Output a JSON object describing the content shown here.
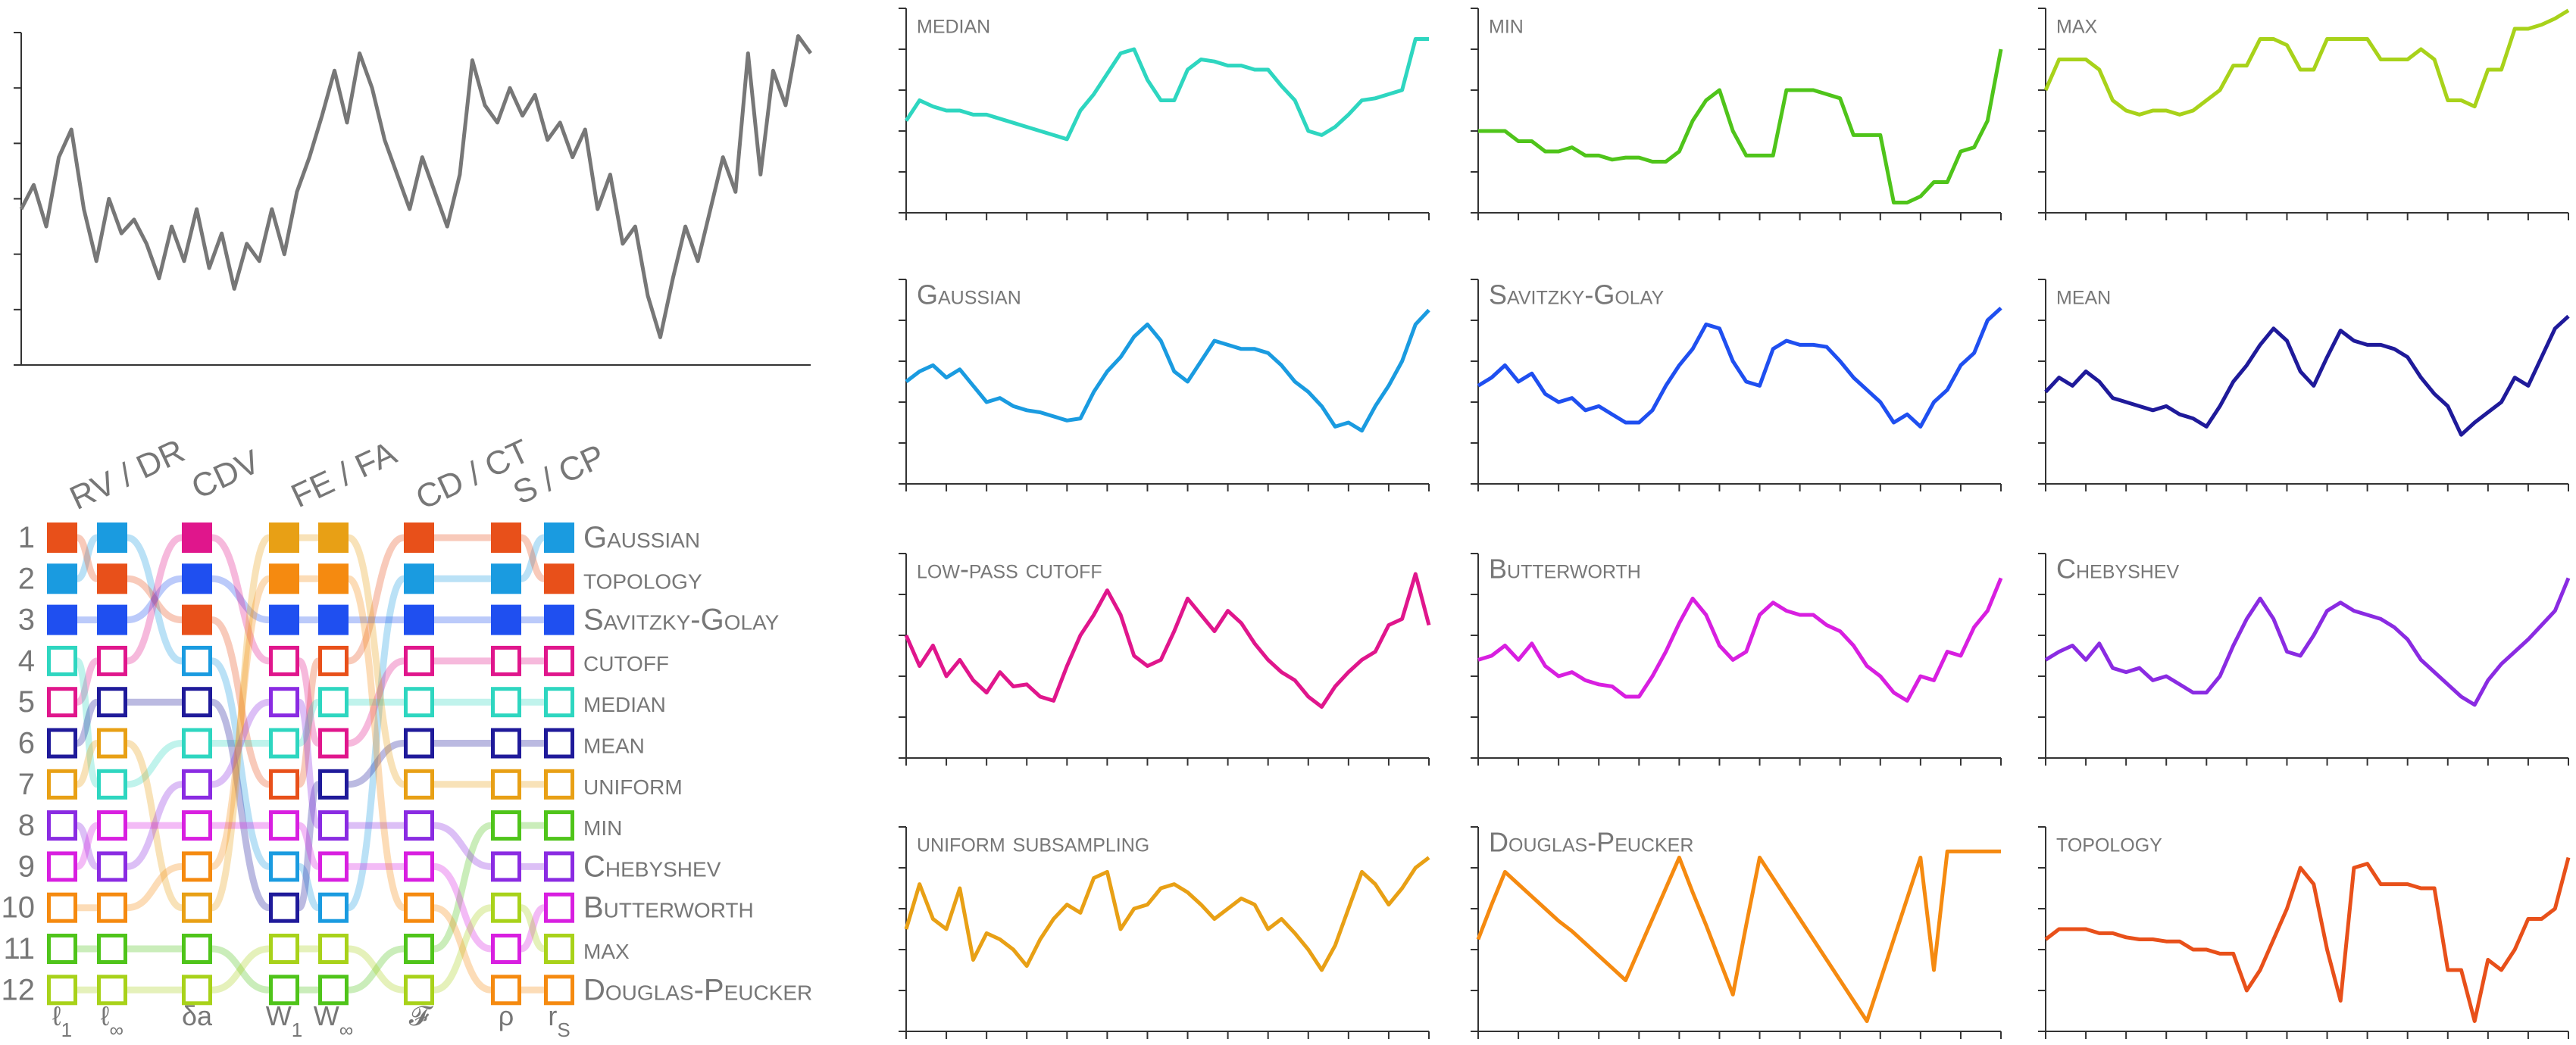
{
  "chart_data": [
    {
      "type": "line",
      "color": "#777777",
      "xlim": [
        0,
        63
      ],
      "ylim": [
        0,
        96
      ],
      "yticks": [
        0,
        16,
        32,
        48,
        64,
        80,
        96
      ],
      "values": [
        45,
        52,
        40,
        60,
        68,
        45,
        30,
        48,
        38,
        42,
        35,
        25,
        40,
        30,
        45,
        28,
        38,
        22,
        35,
        30,
        45,
        32,
        50,
        60,
        72,
        85,
        70,
        90,
        80,
        65,
        55,
        45,
        60,
        50,
        40,
        55,
        88,
        75,
        70,
        80,
        72,
        78,
        65,
        70,
        60,
        68,
        45,
        55,
        35,
        40,
        20,
        8,
        25,
        40,
        30,
        45,
        60,
        50,
        90,
        55,
        85,
        75,
        95,
        90
      ]
    },
    {
      "type": "line",
      "title": "median",
      "color": "#2ed6c0",
      "xlim": [
        0,
        39
      ],
      "xticks": [
        0,
        3,
        6,
        9,
        12,
        15,
        18,
        21,
        24,
        27,
        30,
        33,
        36,
        39
      ],
      "ylim": [
        0,
        100
      ],
      "yticks": [
        0,
        20,
        40,
        60,
        80,
        100
      ],
      "values": [
        45,
        55,
        52,
        50,
        50,
        48,
        48,
        46,
        44,
        42,
        40,
        38,
        36,
        50,
        58,
        68,
        78,
        80,
        65,
        55,
        55,
        70,
        75,
        74,
        72,
        72,
        70,
        70,
        62,
        55,
        40,
        38,
        42,
        48,
        55,
        56,
        58,
        60,
        85,
        85
      ]
    },
    {
      "type": "line",
      "title": "min",
      "color": "#4fc41a",
      "xlim": [
        0,
        39
      ],
      "xticks": [
        0,
        3,
        6,
        9,
        12,
        15,
        18,
        21,
        24,
        27,
        30,
        33,
        36,
        39
      ],
      "ylim": [
        0,
        100
      ],
      "yticks": [
        0,
        20,
        40,
        60,
        80,
        100
      ],
      "values": [
        40,
        40,
        40,
        35,
        35,
        30,
        30,
        32,
        28,
        28,
        26,
        27,
        27,
        25,
        25,
        30,
        45,
        55,
        60,
        40,
        28,
        28,
        28,
        60,
        60,
        60,
        58,
        56,
        38,
        38,
        38,
        5,
        5,
        8,
        15,
        15,
        30,
        32,
        45,
        80
      ]
    },
    {
      "type": "line",
      "title": "max",
      "color": "#a8d21a",
      "xlim": [
        0,
        39
      ],
      "xticks": [
        0,
        3,
        6,
        9,
        12,
        15,
        18,
        21,
        24,
        27,
        30,
        33,
        36,
        39
      ],
      "ylim": [
        0,
        100
      ],
      "yticks": [
        0,
        20,
        40,
        60,
        80,
        100
      ],
      "values": [
        60,
        75,
        75,
        75,
        70,
        55,
        50,
        48,
        50,
        50,
        48,
        50,
        55,
        60,
        72,
        72,
        85,
        85,
        82,
        70,
        70,
        85,
        85,
        85,
        85,
        75,
        75,
        75,
        80,
        75,
        55,
        55,
        52,
        70,
        70,
        90,
        90,
        92,
        95,
        99
      ]
    },
    {
      "type": "line",
      "title": "Gaussian",
      "color": "#1a9be0",
      "xlim": [
        0,
        39
      ],
      "xticks": [
        0,
        3,
        6,
        9,
        12,
        15,
        18,
        21,
        24,
        27,
        30,
        33,
        36,
        39
      ],
      "ylim": [
        0,
        100
      ],
      "yticks": [
        0,
        20,
        40,
        60,
        80,
        100
      ],
      "values": [
        50,
        55,
        58,
        52,
        56,
        48,
        40,
        42,
        38,
        36,
        35,
        33,
        31,
        32,
        45,
        55,
        62,
        72,
        78,
        70,
        55,
        50,
        60,
        70,
        68,
        66,
        66,
        64,
        58,
        50,
        45,
        38,
        28,
        30,
        26,
        38,
        48,
        60,
        78,
        85
      ]
    },
    {
      "type": "line",
      "title": "Savitzky-Golay",
      "color": "#1f4ff0",
      "xlim": [
        0,
        39
      ],
      "xticks": [
        0,
        3,
        6,
        9,
        12,
        15,
        18,
        21,
        24,
        27,
        30,
        33,
        36,
        39
      ],
      "ylim": [
        0,
        100
      ],
      "yticks": [
        0,
        20,
        40,
        60,
        80,
        100
      ],
      "values": [
        48,
        52,
        58,
        50,
        54,
        44,
        40,
        42,
        36,
        38,
        34,
        30,
        30,
        36,
        48,
        58,
        66,
        78,
        76,
        60,
        50,
        48,
        66,
        70,
        68,
        68,
        67,
        60,
        52,
        46,
        40,
        30,
        34,
        28,
        40,
        46,
        58,
        64,
        80,
        86
      ]
    },
    {
      "type": "line",
      "title": "mean",
      "color": "#1f1a9a",
      "xlim": [
        0,
        39
      ],
      "xticks": [
        0,
        3,
        6,
        9,
        12,
        15,
        18,
        21,
        24,
        27,
        30,
        33,
        36,
        39
      ],
      "ylim": [
        0,
        100
      ],
      "yticks": [
        0,
        20,
        40,
        60,
        80,
        100
      ],
      "values": [
        45,
        52,
        48,
        55,
        50,
        42,
        40,
        38,
        36,
        38,
        34,
        32,
        28,
        38,
        50,
        58,
        68,
        76,
        70,
        55,
        48,
        62,
        75,
        70,
        68,
        68,
        66,
        62,
        52,
        44,
        38,
        24,
        30,
        35,
        40,
        52,
        48,
        62,
        76,
        82
      ]
    },
    {
      "type": "line",
      "title": "low-pass cutoff",
      "color": "#e0168c",
      "xlim": [
        0,
        39
      ],
      "xticks": [
        0,
        3,
        6,
        9,
        12,
        15,
        18,
        21,
        24,
        27,
        30,
        33,
        36,
        39
      ],
      "ylim": [
        0,
        100
      ],
      "yticks": [
        0,
        20,
        40,
        60,
        80,
        100
      ],
      "values": [
        60,
        45,
        55,
        40,
        48,
        38,
        32,
        42,
        35,
        36,
        30,
        28,
        45,
        60,
        70,
        82,
        70,
        50,
        45,
        48,
        62,
        78,
        70,
        62,
        72,
        66,
        56,
        48,
        42,
        38,
        30,
        25,
        35,
        42,
        48,
        52,
        65,
        68,
        90,
        65
      ]
    },
    {
      "type": "line",
      "title": "Butterworth",
      "color": "#d81fe0",
      "xlim": [
        0,
        39
      ],
      "xticks": [
        0,
        3,
        6,
        9,
        12,
        15,
        18,
        21,
        24,
        27,
        30,
        33,
        36,
        39
      ],
      "ylim": [
        0,
        100
      ],
      "yticks": [
        0,
        20,
        40,
        60,
        80,
        100
      ],
      "values": [
        48,
        50,
        55,
        48,
        56,
        45,
        40,
        42,
        38,
        36,
        35,
        30,
        30,
        40,
        52,
        66,
        78,
        70,
        55,
        48,
        52,
        70,
        76,
        72,
        70,
        70,
        65,
        62,
        55,
        45,
        40,
        32,
        28,
        40,
        38,
        52,
        50,
        64,
        72,
        88
      ]
    },
    {
      "type": "line",
      "title": "Chebyshev",
      "color": "#8a2be2",
      "xlim": [
        0,
        39
      ],
      "xticks": [
        0,
        3,
        6,
        9,
        12,
        15,
        18,
        21,
        24,
        27,
        30,
        33,
        36,
        39
      ],
      "ylim": [
        0,
        100
      ],
      "yticks": [
        0,
        20,
        40,
        60,
        80,
        100
      ],
      "values": [
        48,
        52,
        55,
        48,
        56,
        44,
        42,
        44,
        38,
        40,
        36,
        32,
        32,
        40,
        55,
        68,
        78,
        68,
        52,
        50,
        60,
        72,
        76,
        72,
        70,
        68,
        64,
        58,
        48,
        42,
        36,
        30,
        26,
        38,
        46,
        52,
        58,
        65,
        72,
        88
      ]
    },
    {
      "type": "line",
      "title": "uniform subsampling",
      "color": "#e8a015",
      "xlim": [
        0,
        39
      ],
      "xticks": [
        0,
        3,
        6,
        9,
        12,
        15,
        18,
        21,
        24,
        27,
        30,
        33,
        36,
        39
      ],
      "ylim": [
        0,
        100
      ],
      "yticks": [
        0,
        20,
        40,
        60,
        80,
        100
      ],
      "values": [
        50,
        72,
        55,
        50,
        70,
        35,
        48,
        45,
        40,
        32,
        45,
        55,
        62,
        58,
        75,
        78,
        50,
        60,
        62,
        70,
        72,
        68,
        62,
        55,
        60,
        65,
        62,
        50,
        55,
        48,
        40,
        30,
        42,
        60,
        78,
        72,
        62,
        70,
        80,
        85
      ]
    },
    {
      "type": "line",
      "title": "Douglas-Peucker",
      "color": "#f58a10",
      "xlim": [
        0,
        39
      ],
      "xticks": [
        0,
        3,
        6,
        9,
        12,
        15,
        18,
        21,
        24,
        27,
        30,
        33,
        36,
        39
      ],
      "ylim": [
        0,
        100
      ],
      "yticks": [
        0,
        20,
        40,
        60,
        80,
        100
      ],
      "values": [
        45,
        62,
        78,
        72,
        66,
        60,
        54,
        49,
        43,
        37,
        31,
        25,
        40,
        55,
        70,
        85,
        68,
        52,
        35,
        18,
        52,
        85,
        75,
        65,
        55,
        45,
        35,
        25,
        15,
        5,
        25,
        45,
        65,
        85,
        30,
        88,
        88,
        88,
        88,
        88
      ]
    },
    {
      "type": "line",
      "title": "topology",
      "color": "#e8501a",
      "xlim": [
        0,
        39
      ],
      "xticks": [
        0,
        3,
        6,
        9,
        12,
        15,
        18,
        21,
        24,
        27,
        30,
        33,
        36,
        39
      ],
      "ylim": [
        0,
        100
      ],
      "yticks": [
        0,
        20,
        40,
        60,
        80,
        100
      ],
      "values": [
        45,
        50,
        50,
        50,
        48,
        48,
        46,
        45,
        45,
        44,
        44,
        40,
        40,
        38,
        38,
        20,
        30,
        45,
        60,
        80,
        72,
        40,
        15,
        80,
        82,
        72,
        72,
        72,
        70,
        70,
        30,
        30,
        5,
        35,
        30,
        40,
        55,
        55,
        60,
        85
      ]
    }
  ],
  "ranking": {
    "ranks": [
      1,
      2,
      3,
      4,
      5,
      6,
      7,
      8,
      9,
      10,
      11,
      12
    ],
    "methods": [
      {
        "name": "Gaussian",
        "color": "#1a9be0"
      },
      {
        "name": "topology",
        "color": "#e8501a"
      },
      {
        "name": "Savitzky-Golay",
        "color": "#1f4ff0"
      },
      {
        "name": "cutoff",
        "color": "#e0168c"
      },
      {
        "name": "median",
        "color": "#2ed6c0"
      },
      {
        "name": "mean",
        "color": "#1f1a9a"
      },
      {
        "name": "uniform",
        "color": "#e8a015"
      },
      {
        "name": "min",
        "color": "#4fc41a"
      },
      {
        "name": "Chebyshev",
        "color": "#8a2be2"
      },
      {
        "name": "Butterworth",
        "color": "#d81fe0"
      },
      {
        "name": "max",
        "color": "#a8d21a"
      },
      {
        "name": "Douglas-Peucker",
        "color": "#f58a10"
      }
    ],
    "groups": [
      {
        "label": "RV / DR",
        "metrics": [
          {
            "main": "ℓ",
            "sub": "1",
            "order": [
              1,
              0,
              2,
              4,
              3,
              5,
              6,
              8,
              9,
              11,
              7,
              10
            ]
          },
          {
            "main": "ℓ",
            "sub": "∞",
            "order": [
              0,
              1,
              2,
              3,
              5,
              6,
              4,
              9,
              8,
              11,
              7,
              10
            ]
          }
        ]
      },
      {
        "label": "CDV",
        "metrics": [
          {
            "main": "δa",
            "order": [
              3,
              2,
              1,
              0,
              5,
              4,
              8,
              9,
              11,
              6,
              7,
              10
            ]
          }
        ]
      },
      {
        "label": "FE / FA",
        "metrics": [
          {
            "main": "W",
            "sub": "1",
            "order": [
              6,
              11,
              2,
              3,
              8,
              4,
              1,
              9,
              0,
              5,
              10,
              7
            ]
          },
          {
            "main": "W",
            "sub": "∞",
            "order": [
              6,
              11,
              2,
              1,
              4,
              3,
              5,
              8,
              9,
              0,
              10,
              7
            ]
          }
        ]
      },
      {
        "label": "CD / CT",
        "metrics": [
          {
            "main": "𝓕",
            "order": [
              1,
              0,
              2,
              3,
              4,
              5,
              6,
              8,
              9,
              11,
              7,
              10
            ]
          }
        ]
      },
      {
        "label": "S / CP",
        "metrics": [
          {
            "main": "ρ",
            "order": [
              1,
              0,
              2,
              3,
              4,
              5,
              6,
              7,
              8,
              10,
              9,
              11
            ]
          },
          {
            "main": "r",
            "sub": "S",
            "order": [
              0,
              1,
              2,
              3,
              4,
              5,
              6,
              7,
              8,
              9,
              10,
              11
            ]
          }
        ]
      }
    ]
  }
}
